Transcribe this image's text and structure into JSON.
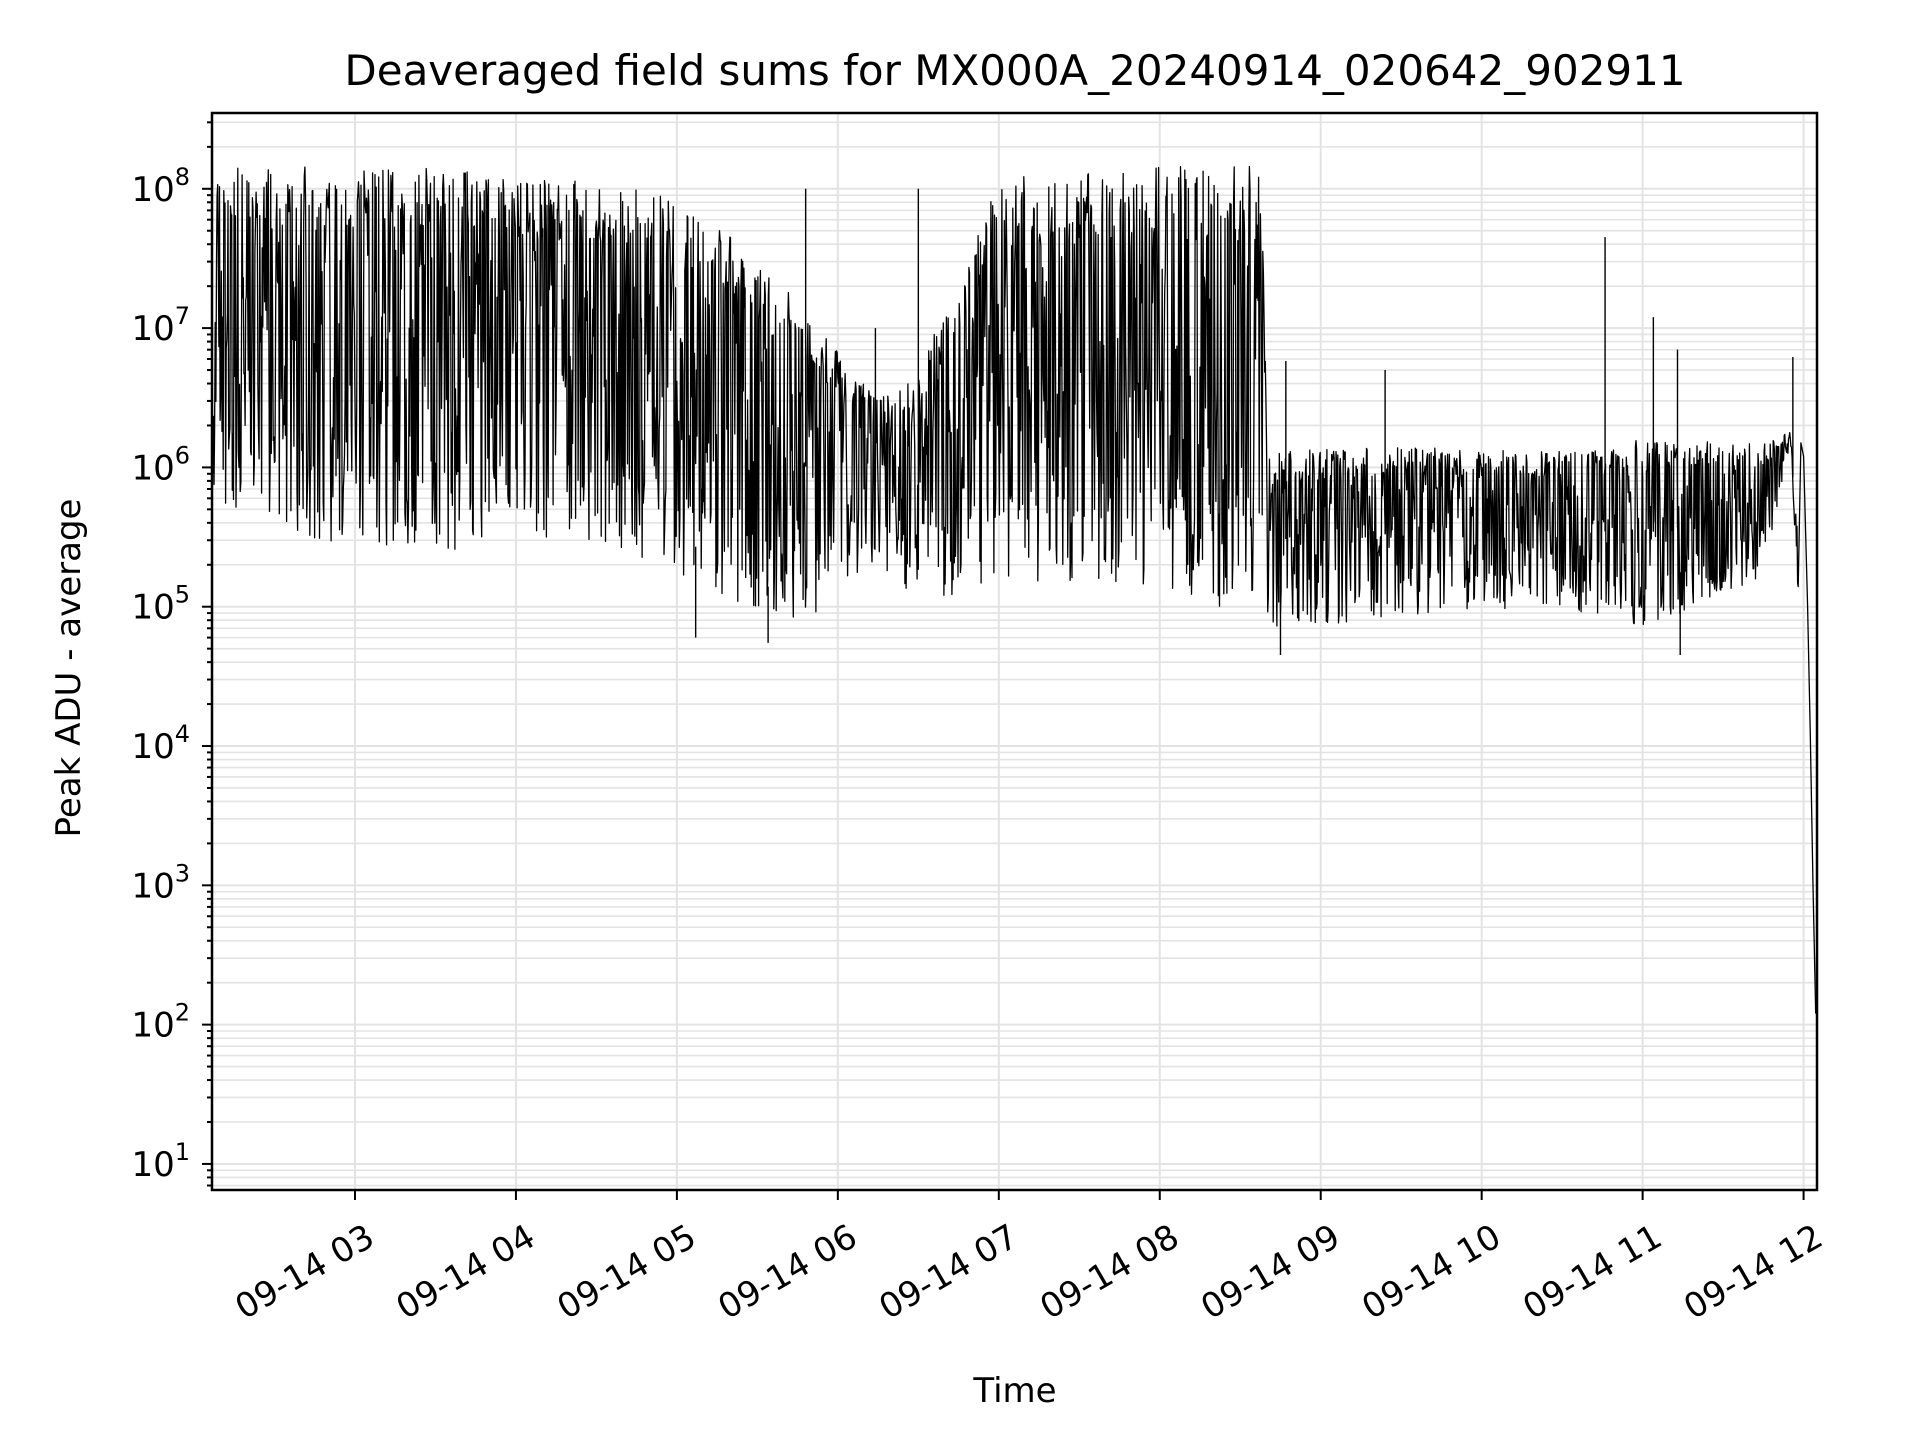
{
  "chart_data": {
    "type": "line",
    "title": "Deaveraged field sums for MX000A_20240914_020642_902911",
    "xlabel": "Time",
    "ylabel": "Peak ADU - average",
    "y_scale": "log",
    "y_range": [
      6.5,
      350000000.0
    ],
    "x_range": [
      "2024-09-14T02:06:42",
      "2024-09-14T12:05:00"
    ],
    "x_tick_labels": [
      "09-14 03",
      "09-14 04",
      "09-14 05",
      "09-14 06",
      "09-14 07",
      "09-14 08",
      "09-14 09",
      "09-14 10",
      "09-14 11",
      "09-14 12"
    ],
    "y_tick_labels": [
      {
        "value": 10,
        "mantissa": "10",
        "exponent": "1"
      },
      {
        "value": 100,
        "mantissa": "10",
        "exponent": "2"
      },
      {
        "value": 1000,
        "mantissa": "10",
        "exponent": "3"
      },
      {
        "value": 10000,
        "mantissa": "10",
        "exponent": "4"
      },
      {
        "value": 100000,
        "mantissa": "10",
        "exponent": "5"
      },
      {
        "value": 1000000,
        "mantissa": "10",
        "exponent": "6"
      },
      {
        "value": 10000000,
        "mantissa": "10",
        "exponent": "7"
      },
      {
        "value": 100000000,
        "mantissa": "10",
        "exponent": "8"
      }
    ],
    "grid": true,
    "line_color": "#000000",
    "series_envelope": [
      {
        "x": "2024-09-14T02:07:00",
        "low": 600000,
        "high": 140000000
      },
      {
        "x": "2024-09-14T02:45:00",
        "low": 300000,
        "high": 145000000
      },
      {
        "x": "2024-09-14T03:30:00",
        "low": 250000,
        "high": 140000000
      },
      {
        "x": "2024-09-14T04:15:00",
        "low": 300000,
        "high": 120000000
      },
      {
        "x": "2024-09-14T04:50:00",
        "low": 200000,
        "high": 100000000
      },
      {
        "x": "2024-09-14T05:20:00",
        "low": 100000,
        "high": 50000000
      },
      {
        "x": "2024-09-14T05:40:00",
        "low": 60000,
        "high": 20000000
      },
      {
        "x": "2024-09-14T06:15:00",
        "low": 200000,
        "high": 3000000
      },
      {
        "x": "2024-09-14T06:30:00",
        "low": 100000,
        "high": 5000000
      },
      {
        "x": "2024-09-14T07:00:00",
        "low": 150000,
        "high": 120000000
      },
      {
        "x": "2024-09-14T07:40:00",
        "low": 150000,
        "high": 130000000
      },
      {
        "x": "2024-09-14T08:10:00",
        "low": 100000,
        "high": 150000000
      },
      {
        "x": "2024-09-14T08:38:00",
        "low": 100000,
        "high": 150000000
      },
      {
        "x": "2024-09-14T08:40:00",
        "low": 70000,
        "high": 1300000
      },
      {
        "x": "2024-09-14T09:30:00",
        "low": 80000,
        "high": 1400000
      },
      {
        "x": "2024-09-14T10:30:00",
        "low": 100000,
        "high": 1300000
      },
      {
        "x": "2024-09-14T11:00:00",
        "low": 70000,
        "high": 1600000
      },
      {
        "x": "2024-09-14T11:45:00",
        "low": 150000,
        "high": 1500000
      },
      {
        "x": "2024-09-14T11:55:00",
        "low": 1500000,
        "high": 1800000
      },
      {
        "x": "2024-09-14T12:01:00",
        "low": 10000,
        "high": 100000
      },
      {
        "x": "2024-09-14T12:04:30",
        "low": 100,
        "high": 200
      }
    ],
    "notable_spikes": [
      {
        "x": "2024-09-14T05:48:00",
        "y": 100000000
      },
      {
        "x": "2024-09-14T06:14:00",
        "y": 10000000
      },
      {
        "x": "2024-09-14T06:30:00",
        "y": 100000000
      },
      {
        "x": "2024-09-14T08:47:00",
        "y": 5800000
      },
      {
        "x": "2024-09-14T09:24:00",
        "y": 5000000
      },
      {
        "x": "2024-09-14T10:46:00",
        "y": 45000000
      },
      {
        "x": "2024-09-14T11:04:00",
        "y": 12000000
      },
      {
        "x": "2024-09-14T11:13:00",
        "y": 7000000
      },
      {
        "x": "2024-09-14T11:56:00",
        "y": 6200000
      }
    ],
    "minimum_dips": [
      {
        "x": "2024-09-14T08:45:00",
        "y": 45000
      },
      {
        "x": "2024-09-14T11:14:00",
        "y": 45000
      },
      {
        "x": "2024-09-14T05:34:00",
        "y": 55000
      },
      {
        "x": "2024-09-14T05:07:00",
        "y": 60000
      }
    ]
  }
}
